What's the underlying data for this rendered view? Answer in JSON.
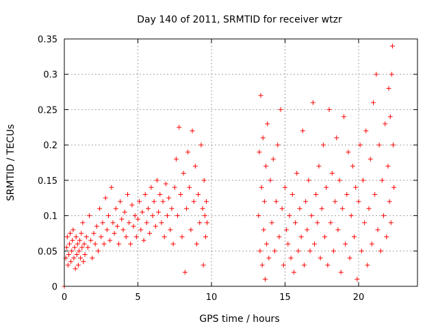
{
  "chart_data": {
    "type": "scatter",
    "title": "Day 140 of 2011, SRMTID for receiver wtzr",
    "xlabel": "GPS time / hours",
    "ylabel": "SRMTID / TECUs",
    "xlim": [
      0,
      24
    ],
    "ylim": [
      0,
      0.35
    ],
    "xticks": [
      0,
      5,
      10,
      15,
      20
    ],
    "xtick_labels": [
      "0",
      "5",
      "10",
      "15",
      "20"
    ],
    "yticks": [
      0,
      0.05,
      0.1,
      0.15,
      0.2,
      0.25,
      0.3,
      0.35
    ],
    "ytick_labels": [
      "0",
      "0.05",
      "0.1",
      "0.15",
      "0.2",
      "0.25",
      "0.3",
      "0.35"
    ],
    "grid": true,
    "marker": "plus",
    "color": "#ff0000",
    "series": [
      {
        "name": "SRMTID",
        "points": [
          [
            0.0,
            0.0
          ],
          [
            0.1,
            0.04
          ],
          [
            0.15,
            0.055
          ],
          [
            0.2,
            0.07
          ],
          [
            0.25,
            0.03
          ],
          [
            0.3,
            0.045
          ],
          [
            0.35,
            0.06
          ],
          [
            0.4,
            0.075
          ],
          [
            0.45,
            0.035
          ],
          [
            0.5,
            0.05
          ],
          [
            0.55,
            0.065
          ],
          [
            0.6,
            0.08
          ],
          [
            0.65,
            0.04
          ],
          [
            0.7,
            0.055
          ],
          [
            0.75,
            0.025
          ],
          [
            0.8,
            0.07
          ],
          [
            0.85,
            0.045
          ],
          [
            0.9,
            0.06
          ],
          [
            0.95,
            0.03
          ],
          [
            1.0,
            0.05
          ],
          [
            1.05,
            0.065
          ],
          [
            1.1,
            0.04
          ],
          [
            1.15,
            0.075
          ],
          [
            1.2,
            0.055
          ],
          [
            1.25,
            0.09
          ],
          [
            1.3,
            0.035
          ],
          [
            1.35,
            0.06
          ],
          [
            1.4,
            0.045
          ],
          [
            1.5,
            0.07
          ],
          [
            1.6,
            0.055
          ],
          [
            1.7,
            0.1
          ],
          [
            1.8,
            0.065
          ],
          [
            1.9,
            0.04
          ],
          [
            2.0,
            0.075
          ],
          [
            2.1,
            0.06
          ],
          [
            2.2,
            0.085
          ],
          [
            2.3,
            0.05
          ],
          [
            2.4,
            0.11
          ],
          [
            2.5,
            0.07
          ],
          [
            2.6,
            0.09
          ],
          [
            2.7,
            0.06
          ],
          [
            2.8,
            0.125
          ],
          [
            2.9,
            0.08
          ],
          [
            3.0,
            0.1
          ],
          [
            3.1,
            0.065
          ],
          [
            3.2,
            0.14
          ],
          [
            3.3,
            0.09
          ],
          [
            3.4,
            0.075
          ],
          [
            3.5,
            0.11
          ],
          [
            3.6,
            0.085
          ],
          [
            3.7,
            0.06
          ],
          [
            3.8,
            0.12
          ],
          [
            3.9,
            0.095
          ],
          [
            4.0,
            0.08
          ],
          [
            4.1,
            0.105
          ],
          [
            4.2,
            0.07
          ],
          [
            4.3,
            0.13
          ],
          [
            4.4,
            0.09
          ],
          [
            4.5,
            0.06
          ],
          [
            4.6,
            0.115
          ],
          [
            4.7,
            0.085
          ],
          [
            4.8,
            0.1
          ],
          [
            4.9,
            0.07
          ],
          [
            5.0,
            0.095
          ],
          [
            5.1,
            0.12
          ],
          [
            5.2,
            0.08
          ],
          [
            5.3,
            0.105
          ],
          [
            5.4,
            0.065
          ],
          [
            5.5,
            0.13
          ],
          [
            5.6,
            0.09
          ],
          [
            5.7,
            0.11
          ],
          [
            5.8,
            0.075
          ],
          [
            5.9,
            0.14
          ],
          [
            6.0,
            0.1
          ],
          [
            6.1,
            0.12
          ],
          [
            6.2,
            0.085
          ],
          [
            6.3,
            0.15
          ],
          [
            6.4,
            0.105
          ],
          [
            6.5,
            0.13
          ],
          [
            6.6,
            0.09
          ],
          [
            6.7,
            0.12
          ],
          [
            6.8,
            0.07
          ],
          [
            6.9,
            0.145
          ],
          [
            7.0,
            0.1
          ],
          [
            7.1,
            0.125
          ],
          [
            7.2,
            0.08
          ],
          [
            7.3,
            0.11
          ],
          [
            7.4,
            0.06
          ],
          [
            7.5,
            0.14
          ],
          [
            7.6,
            0.18
          ],
          [
            7.7,
            0.1
          ],
          [
            7.8,
            0.225
          ],
          [
            7.9,
            0.13
          ],
          [
            8.0,
            0.07
          ],
          [
            8.1,
            0.16
          ],
          [
            8.2,
            0.02
          ],
          [
            8.3,
            0.11
          ],
          [
            8.4,
            0.19
          ],
          [
            8.5,
            0.14
          ],
          [
            8.6,
            0.08
          ],
          [
            8.7,
            0.22
          ],
          [
            8.8,
            0.12
          ],
          [
            8.9,
            0.17
          ],
          [
            9.0,
            0.06
          ],
          [
            9.1,
            0.13
          ],
          [
            9.2,
            0.09
          ],
          [
            9.3,
            0.2
          ],
          [
            9.4,
            0.11
          ],
          [
            9.45,
            0.03
          ],
          [
            9.5,
            0.15
          ],
          [
            9.55,
            0.1
          ],
          [
            9.6,
            0.07
          ],
          [
            9.65,
            0.12
          ],
          [
            9.7,
            0.09
          ],
          [
            13.2,
            0.1
          ],
          [
            13.25,
            0.19
          ],
          [
            13.3,
            0.05
          ],
          [
            13.35,
            0.27
          ],
          [
            13.4,
            0.14
          ],
          [
            13.45,
            0.03
          ],
          [
            13.5,
            0.21
          ],
          [
            13.55,
            0.08
          ],
          [
            13.6,
            0.12
          ],
          [
            13.65,
            0.01
          ],
          [
            13.7,
            0.17
          ],
          [
            13.75,
            0.06
          ],
          [
            13.8,
            0.23
          ],
          [
            13.9,
            0.04
          ],
          [
            14.0,
            0.15
          ],
          [
            14.1,
            0.09
          ],
          [
            14.2,
            0.18
          ],
          [
            14.3,
            0.05
          ],
          [
            14.4,
            0.12
          ],
          [
            14.5,
            0.2
          ],
          [
            14.6,
            0.07
          ],
          [
            14.7,
            0.25
          ],
          [
            14.8,
            0.11
          ],
          [
            14.9,
            0.03
          ],
          [
            15.0,
            0.14
          ],
          [
            15.1,
            0.08
          ],
          [
            15.2,
            0.06
          ],
          [
            15.3,
            0.1
          ],
          [
            15.4,
            0.04
          ],
          [
            15.5,
            0.13
          ],
          [
            15.6,
            0.02
          ],
          [
            15.7,
            0.09
          ],
          [
            15.8,
            0.16
          ],
          [
            15.9,
            0.05
          ],
          [
            16.0,
            0.11
          ],
          [
            16.1,
            0.07
          ],
          [
            16.2,
            0.22
          ],
          [
            16.3,
            0.03
          ],
          [
            16.4,
            0.12
          ],
          [
            16.5,
            0.08
          ],
          [
            16.6,
            0.15
          ],
          [
            16.7,
            0.05
          ],
          [
            16.8,
            0.1
          ],
          [
            16.9,
            0.26
          ],
          [
            17.0,
            0.06
          ],
          [
            17.1,
            0.13
          ],
          [
            17.2,
            0.09
          ],
          [
            17.3,
            0.17
          ],
          [
            17.4,
            0.04
          ],
          [
            17.5,
            0.11
          ],
          [
            17.6,
            0.2
          ],
          [
            17.7,
            0.07
          ],
          [
            17.8,
            0.14
          ],
          [
            17.9,
            0.03
          ],
          [
            18.0,
            0.25
          ],
          [
            18.1,
            0.09
          ],
          [
            18.2,
            0.16
          ],
          [
            18.3,
            0.05
          ],
          [
            18.4,
            0.12
          ],
          [
            18.5,
            0.21
          ],
          [
            18.6,
            0.08
          ],
          [
            18.7,
            0.15
          ],
          [
            18.8,
            0.02
          ],
          [
            18.9,
            0.11
          ],
          [
            19.0,
            0.24
          ],
          [
            19.1,
            0.06
          ],
          [
            19.2,
            0.13
          ],
          [
            19.3,
            0.19
          ],
          [
            19.4,
            0.04
          ],
          [
            19.5,
            0.1
          ],
          [
            19.6,
            0.17
          ],
          [
            19.7,
            0.07
          ],
          [
            19.8,
            0.14
          ],
          [
            19.9,
            0.01
          ],
          [
            20.0,
            0.12
          ],
          [
            20.1,
            0.2
          ],
          [
            20.2,
            0.05
          ],
          [
            20.3,
            0.15
          ],
          [
            20.4,
            0.09
          ],
          [
            20.5,
            0.22
          ],
          [
            20.6,
            0.03
          ],
          [
            20.7,
            0.11
          ],
          [
            20.8,
            0.18
          ],
          [
            20.9,
            0.06
          ],
          [
            21.0,
            0.26
          ],
          [
            21.1,
            0.13
          ],
          [
            21.2,
            0.3
          ],
          [
            21.3,
            0.08
          ],
          [
            21.4,
            0.2
          ],
          [
            21.5,
            0.05
          ],
          [
            21.6,
            0.15
          ],
          [
            21.7,
            0.1
          ],
          [
            21.8,
            0.23
          ],
          [
            21.9,
            0.07
          ],
          [
            22.0,
            0.17
          ],
          [
            22.05,
            0.28
          ],
          [
            22.1,
            0.12
          ],
          [
            22.15,
            0.24
          ],
          [
            22.2,
            0.09
          ],
          [
            22.25,
            0.3
          ],
          [
            22.3,
            0.34
          ],
          [
            22.35,
            0.2
          ],
          [
            22.4,
            0.14
          ]
        ]
      }
    ]
  }
}
